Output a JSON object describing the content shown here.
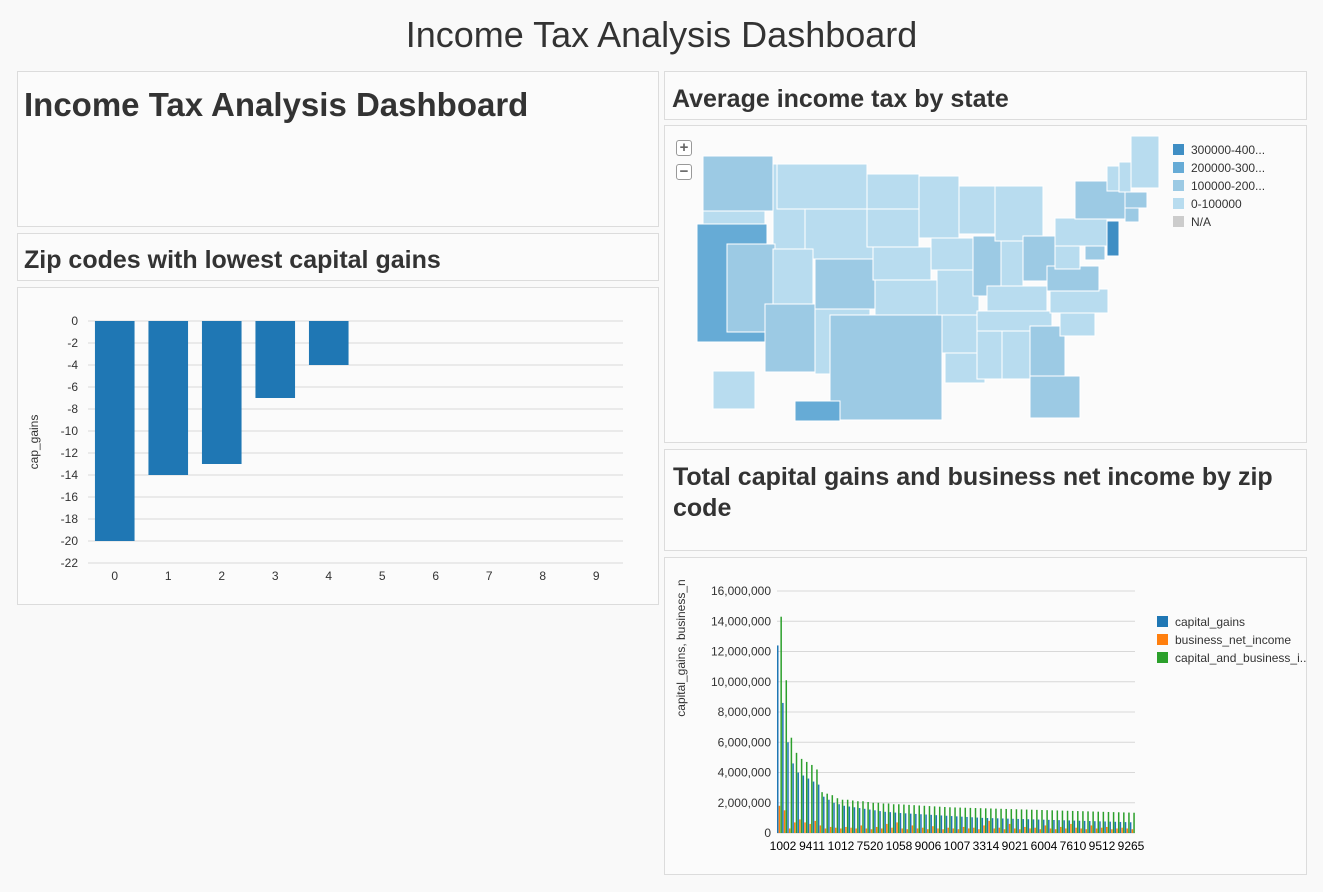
{
  "dashboard": {
    "title": "Income Tax Analysis Dashboard"
  },
  "text_panel": {
    "heading": "Income Tax Analysis Dashboard"
  },
  "zip_panel": {
    "heading": "Zip codes with lowest capital gains"
  },
  "map_panel": {
    "heading": "Average income tax by state",
    "zoom_in_label": "+",
    "zoom_out_label": "−",
    "legend": [
      {
        "label": "300000-400...",
        "color": "#3f8ec4"
      },
      {
        "label": "200000-300...",
        "color": "#66abd6"
      },
      {
        "label": "100000-200...",
        "color": "#9ccae4"
      },
      {
        "label": "0-100000",
        "color": "#b8dcef"
      },
      {
        "label": "N/A",
        "color": "#cccccc"
      }
    ],
    "state_colors": {
      "CA": "#66abd6",
      "NJ": "#3f8ec4",
      "NY": "#9ccae4",
      "TX": "#9ccae4",
      "IL": "#9ccae4",
      "OH": "#9ccae4",
      "WA": "#9ccae4",
      "NV": "#9ccae4",
      "AZ": "#9ccae4",
      "CO": "#9ccae4",
      "GA": "#9ccae4",
      "FL": "#9ccae4",
      "VA": "#9ccae4",
      "MA": "#9ccae4",
      "CT": "#9ccae4",
      "MD": "#9ccae4",
      "HI": "#66abd6",
      "default": "#b8dcef"
    }
  },
  "cap_panel": {
    "heading": "Total capital gains and business net income by zip code"
  },
  "chart_data": [
    {
      "type": "bar",
      "categories": [
        "0",
        "1",
        "2",
        "3",
        "4",
        "5",
        "6",
        "7",
        "8",
        "9"
      ],
      "series": [
        {
          "values": [
            -20,
            -14,
            -13,
            -7,
            -4,
            null,
            null,
            null,
            null,
            null
          ],
          "color": "#1f77b4"
        }
      ],
      "ylabel": "cap_gains",
      "ylim": [
        -22,
        0
      ],
      "yticks": [
        0,
        -2,
        -4,
        -6,
        -8,
        -10,
        -12,
        -14,
        -16,
        -18,
        -20,
        -22
      ],
      "grid": true
    },
    {
      "type": "bar",
      "ylabel": "capital_gains, business_n",
      "xtick_labels": [
        "1002",
        "9411",
        "1012",
        "7520",
        "1058",
        "9006",
        "1007",
        "3314",
        "9021",
        "6004",
        "7610",
        "9512",
        "9265"
      ],
      "ylim": [
        0,
        16000000
      ],
      "yticks": [
        "0",
        "2,000,000",
        "4,000,000",
        "6,000,000",
        "8,000,000",
        "10,000,000",
        "12,000,000",
        "14,000,000",
        "16,000,000"
      ],
      "legend_position": "right",
      "grid": true,
      "series": [
        {
          "name": "capital_gains",
          "color": "#1f77b4",
          "values": [
            12400000,
            8600000,
            6000000,
            4600000,
            4000000,
            3800000,
            3600000,
            3400000,
            3200000,
            2400000,
            2200000,
            2000000,
            1900000,
            1800000,
            1750000,
            1700000,
            1650000,
            1600000,
            1550000,
            1500000,
            1450000,
            1400000,
            1380000,
            1350000,
            1320000,
            1300000,
            1280000,
            1260000,
            1240000,
            1220000,
            1200000,
            1180000,
            1160000,
            1140000,
            1120000,
            1100000,
            1080000,
            1060000,
            1040000,
            1020000,
            1000000,
            990000,
            980000,
            970000,
            960000,
            950000,
            940000,
            930000,
            920000,
            910000,
            900000,
            890000,
            880000,
            870000,
            860000,
            850000,
            840000,
            830000,
            820000,
            810000,
            800000,
            790000,
            780000,
            770000,
            760000,
            750000,
            740000,
            730000,
            720000,
            710000
          ]
        },
        {
          "name": "business_net_income",
          "color": "#ff7f0e",
          "values": [
            1800000,
            1500000,
            300000,
            700000,
            900000,
            700000,
            600000,
            800000,
            500000,
            300000,
            400000,
            350000,
            300000,
            400000,
            350000,
            300000,
            500000,
            300000,
            250000,
            400000,
            300000,
            600000,
            350000,
            700000,
            300000,
            250000,
            500000,
            300000,
            350000,
            250000,
            450000,
            300000,
            250000,
            350000,
            300000,
            250000,
            400000,
            300000,
            350000,
            250000,
            500000,
            800000,
            300000,
            350000,
            250000,
            600000,
            300000,
            250000,
            400000,
            300000,
            350000,
            250000,
            500000,
            300000,
            250000,
            400000,
            300000,
            600000,
            350000,
            300000,
            250000,
            500000,
            300000,
            350000,
            400000,
            250000,
            300000,
            350000,
            300000,
            250000
          ]
        },
        {
          "name": "capital_and_business_i...",
          "color": "#2ca02c",
          "values": [
            14300000,
            10100000,
            6300000,
            5300000,
            4900000,
            4700000,
            4500000,
            4200000,
            2700000,
            2600000,
            2500000,
            2300000,
            2200000,
            2200000,
            2150000,
            2100000,
            2100000,
            2050000,
            2000000,
            2000000,
            1950000,
            1950000,
            1900000,
            1900000,
            1880000,
            1860000,
            1840000,
            1820000,
            1800000,
            1780000,
            1760000,
            1740000,
            1720000,
            1700000,
            1690000,
            1680000,
            1670000,
            1660000,
            1650000,
            1640000,
            1630000,
            1620000,
            1610000,
            1600000,
            1590000,
            1580000,
            1570000,
            1560000,
            1550000,
            1540000,
            1530000,
            1520000,
            1510000,
            1500000,
            1490000,
            1480000,
            1470000,
            1460000,
            1450000,
            1440000,
            1430000,
            1420000,
            1410000,
            1400000,
            1390000,
            1380000,
            1370000,
            1360000,
            1350000,
            1340000
          ]
        }
      ]
    }
  ]
}
